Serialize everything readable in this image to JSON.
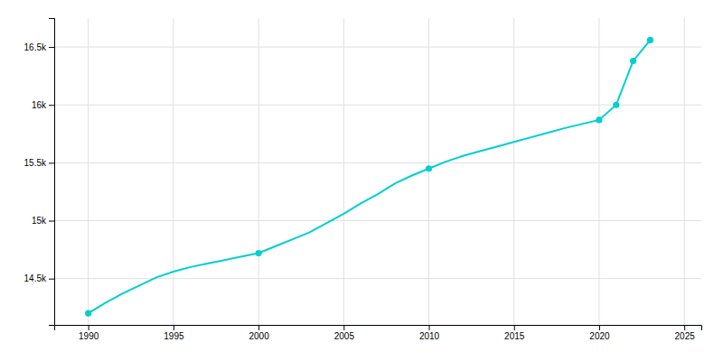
{
  "chart_data": {
    "type": "line",
    "x": [
      1990,
      1991,
      1992,
      1993,
      1994,
      1995,
      1996,
      1997,
      1998,
      1999,
      2000,
      2001,
      2002,
      2003,
      2004,
      2005,
      2006,
      2007,
      2008,
      2009,
      2010,
      2011,
      2012,
      2013,
      2014,
      2015,
      2016,
      2017,
      2018,
      2019,
      2020,
      2021,
      2022,
      2023
    ],
    "series": [
      {
        "type": "line",
        "color": "#00CED1",
        "values": [
          14200,
          14290,
          14370,
          14440,
          14510,
          14560,
          14600,
          14630,
          14660,
          14690,
          14720,
          14780,
          14840,
          14900,
          14980,
          15060,
          15150,
          15230,
          15320,
          15390,
          15450,
          15510,
          15560,
          15600,
          15640,
          15680,
          15720,
          15760,
          15800,
          15835,
          15870,
          16000,
          16380,
          16560
        ]
      },
      {
        "type": "scatter",
        "marker": "circle",
        "color": "#00CED1",
        "values": [
          14200,
          null,
          null,
          null,
          null,
          null,
          null,
          null,
          null,
          null,
          14720,
          null,
          null,
          null,
          null,
          null,
          null,
          null,
          null,
          null,
          15450,
          null,
          null,
          null,
          null,
          null,
          null,
          null,
          null,
          null,
          15870,
          16000,
          16380,
          16560
        ]
      }
    ],
    "xlim": [
      1988,
      2026
    ],
    "xticks": [
      1990,
      1995,
      2000,
      2005,
      2010,
      2015,
      2020,
      2025
    ],
    "ylim": [
      14100,
      16750
    ],
    "yticks": [
      {
        "value": 14500,
        "label": "14.5k"
      },
      {
        "value": 15000,
        "label": "15k"
      },
      {
        "value": 15500,
        "label": "15.5k"
      },
      {
        "value": 16000,
        "label": "16k"
      },
      {
        "value": 16500,
        "label": "16.5k"
      }
    ],
    "grid": true
  }
}
